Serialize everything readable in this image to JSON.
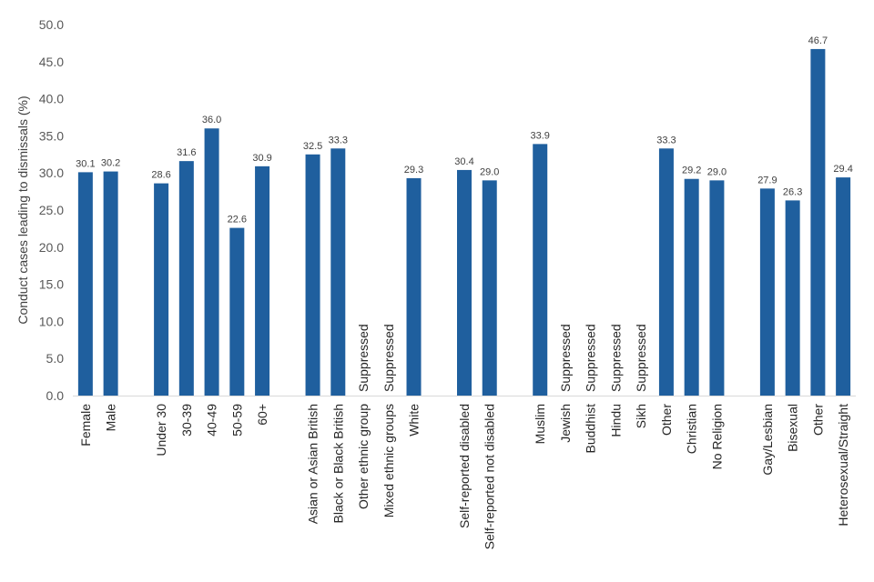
{
  "chart_data": {
    "type": "bar",
    "title": "",
    "xlabel": "",
    "ylabel": "Conduct cases leading to dismissals (%)",
    "ylim": [
      0,
      50
    ],
    "ytick_step": 5,
    "ytick_labels": [
      "0.0",
      "5.0",
      "10.0",
      "15.0",
      "20.0",
      "25.0",
      "30.0",
      "35.0",
      "40.0",
      "45.0",
      "50.0"
    ],
    "grid": false,
    "bar_color": "#1F5F9E",
    "categories": [
      "Female",
      "Male",
      "",
      "Under 30",
      "30-39",
      "40-49",
      "50-59",
      "60+",
      "",
      "Asian or Asian British",
      "Black or Black British",
      "Other ethnic group",
      "Mixed ethnic groups",
      "White",
      "",
      "Self-reported disabled",
      "Self-reported not disabled",
      "",
      "Muslim",
      "Jewish",
      "Buddhist",
      "Hindu",
      "Sikh",
      "Other",
      "Christian",
      "No Religion",
      "",
      "Gay/Lesbian",
      "Bisexual",
      "Other",
      "Heterosexual/Straight"
    ],
    "values": [
      30.1,
      30.2,
      null,
      28.6,
      31.6,
      36.0,
      22.6,
      30.9,
      null,
      32.5,
      33.3,
      null,
      null,
      29.3,
      null,
      30.4,
      29.0,
      null,
      33.9,
      null,
      null,
      null,
      null,
      33.3,
      29.2,
      29.0,
      null,
      27.9,
      26.3,
      46.7,
      29.4
    ],
    "data_labels": [
      "30.1",
      "30.2",
      "",
      "28.6",
      "31.6",
      "36.0",
      "22.6",
      "30.9",
      "",
      "32.5",
      "33.3",
      "Suppressed",
      "Suppressed",
      "29.3",
      "",
      "30.4",
      "29.0",
      "",
      "33.9",
      "Suppressed",
      "Suppressed",
      "Suppressed",
      "Suppressed",
      "33.3",
      "29.2",
      "29.0",
      "",
      "27.9",
      "26.3",
      "46.7",
      "29.4"
    ]
  }
}
